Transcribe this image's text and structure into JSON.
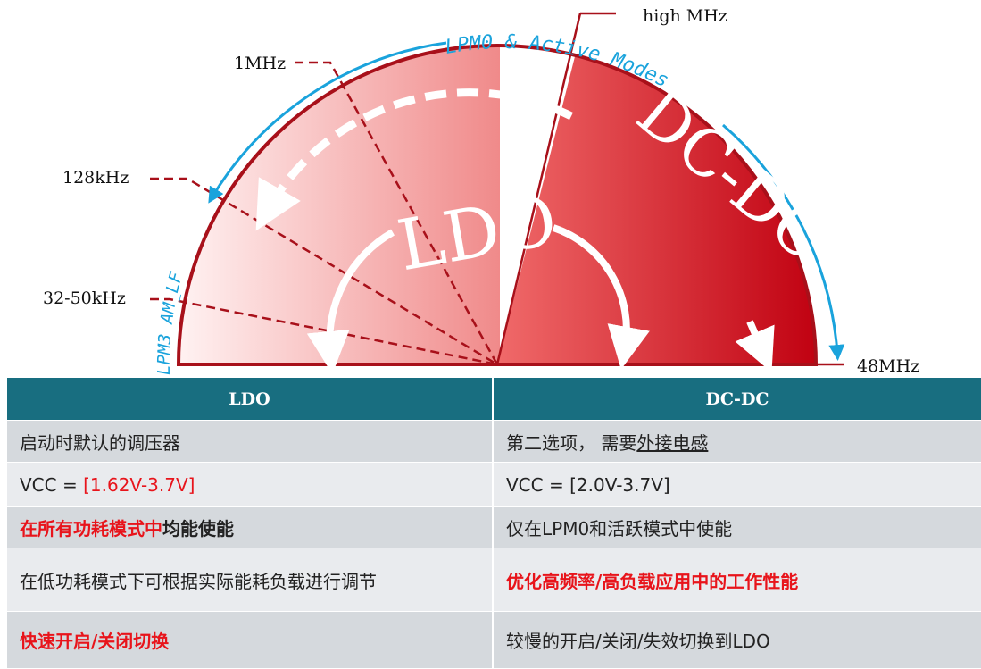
{
  "diagram": {
    "labels": {
      "high": "high MHz",
      "one": "1MHz",
      "k128": "128kHz",
      "k32": "32-50kHz",
      "m48": "48MHz"
    },
    "modes": {
      "active": "LPM0  & Active Modes",
      "low": "LPM3  AM_LF"
    },
    "regions": {
      "ldo": "LDO",
      "dcdc": "DC-DC"
    }
  },
  "table": {
    "header": [
      "LDO",
      "DC-DC"
    ],
    "rows": [
      [
        [
          {
            "text": "启动时默认的调压器"
          }
        ],
        [
          {
            "text": "第二选项， 需要"
          },
          {
            "text": "外接电感",
            "underline": true
          }
        ]
      ],
      [
        [
          {
            "text": "VCC = "
          },
          {
            "text": "[1.62V-3.7V]",
            "color": "#e8141b"
          }
        ],
        [
          {
            "text": "VCC = [2.0V-3.7V]"
          }
        ]
      ],
      [
        [
          {
            "text": "在所有功耗模式中",
            "color": "#e8141b",
            "bold": true
          },
          {
            "text": "均能使能",
            "bold": true
          }
        ],
        [
          {
            "text": "仅在LPM0和活跃模式中使能"
          }
        ]
      ],
      [
        [
          {
            "text": "在低功耗模式下可根据实际能耗负载进行调节"
          }
        ],
        [
          {
            "text": "优化高频率/高负载应用中的工作性能",
            "color": "#e8141b",
            "bold": true
          }
        ]
      ],
      [
        [
          {
            "text": "快速开启/关闭切换",
            "color": "#e8141b",
            "bold": true
          }
        ],
        [
          {
            "text": "较慢的开启/关闭/失效切换到LDO"
          }
        ]
      ]
    ]
  }
}
